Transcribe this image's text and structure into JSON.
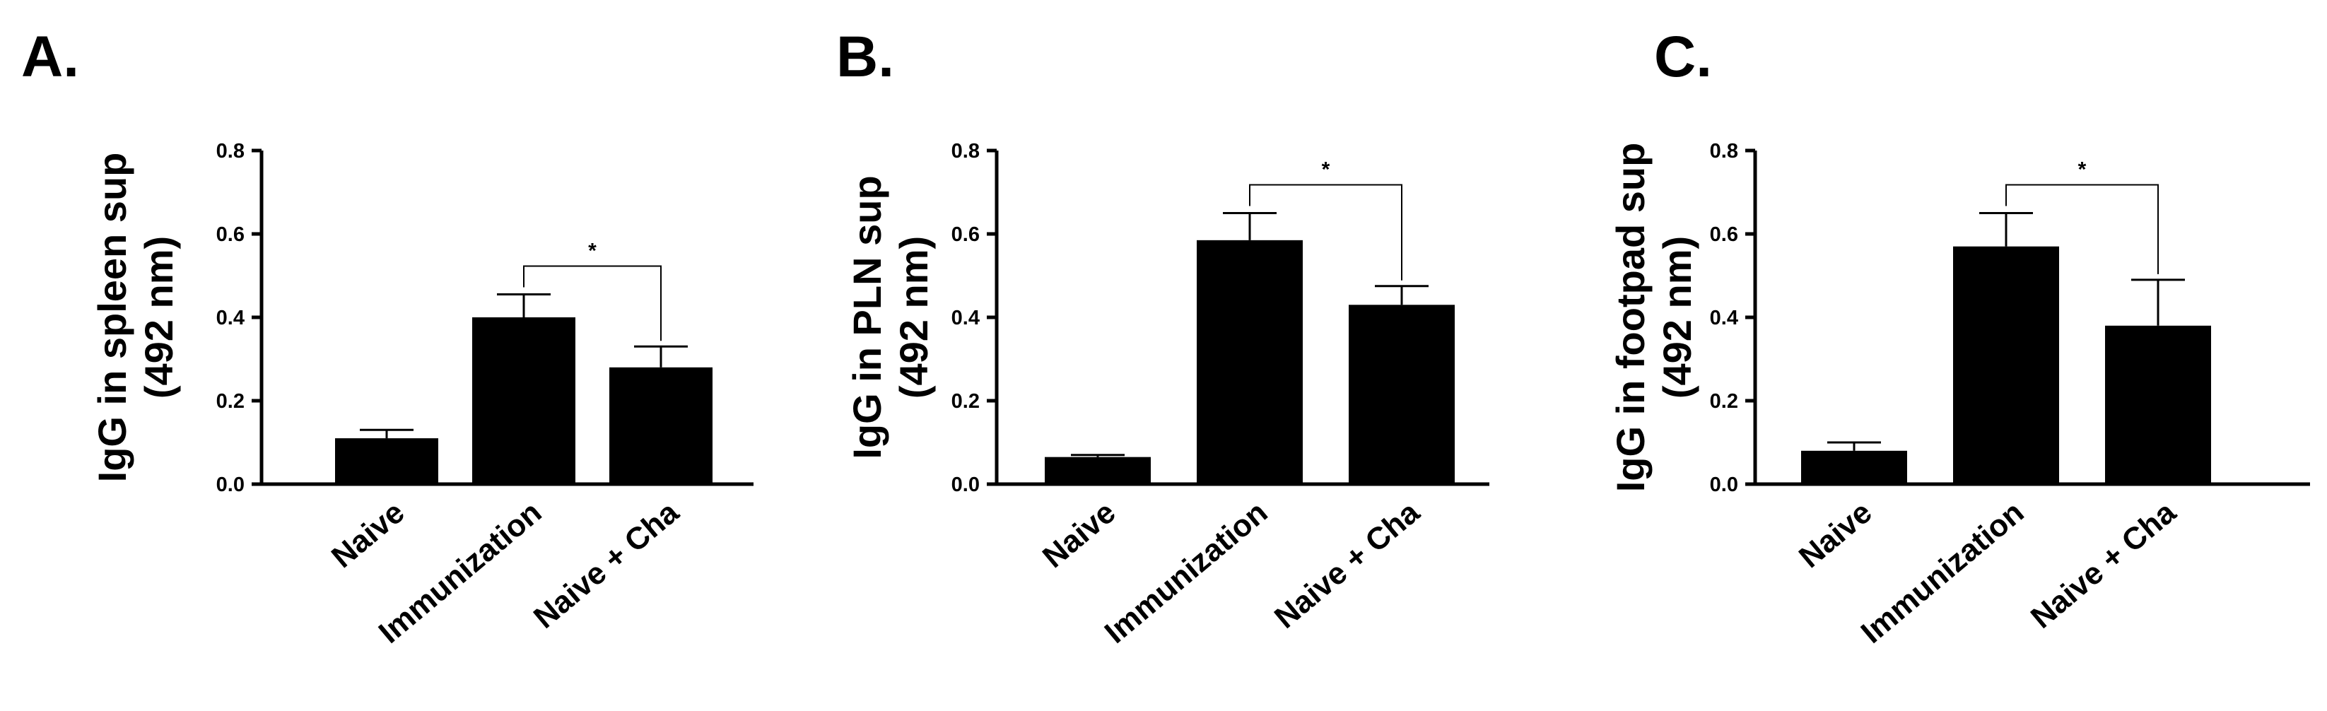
{
  "chart_data": [
    {
      "panel_label": "A.",
      "type": "bar",
      "categories": [
        "Naive",
        "Immunization",
        "Naive + Cha"
      ],
      "values": [
        0.11,
        0.4,
        0.28
      ],
      "errors": [
        0.02,
        0.055,
        0.05
      ],
      "ylabel_lines": [
        "IgG in spleen sup",
        "(492 nm)"
      ],
      "xlabel": "",
      "ylim": [
        0,
        0.8
      ],
      "yticks": [
        "0.0",
        "0.2",
        "0.4",
        "0.6",
        "0.8"
      ],
      "yticks_values": [
        0,
        0.2,
        0.4,
        0.6,
        0.8
      ],
      "significance": [
        {
          "from": 1,
          "to": 2,
          "label": "*"
        }
      ],
      "grid": false,
      "color": "#000000"
    },
    {
      "panel_label": "B.",
      "type": "bar",
      "categories": [
        "Naive",
        "Immunization",
        "Naive + Cha"
      ],
      "values": [
        0.065,
        0.585,
        0.43
      ],
      "errors": [
        0.005,
        0.065,
        0.045
      ],
      "ylabel_lines": [
        "IgG in PLN sup",
        "(492 nm)"
      ],
      "xlabel": "",
      "ylim": [
        0,
        0.8
      ],
      "yticks": [
        "0.0",
        "0.2",
        "0.4",
        "0.6",
        "0.8"
      ],
      "yticks_values": [
        0,
        0.2,
        0.4,
        0.6,
        0.8
      ],
      "significance": [
        {
          "from": 1,
          "to": 2,
          "label": "*"
        }
      ],
      "grid": false,
      "color": "#000000"
    },
    {
      "panel_label": "C.",
      "type": "bar",
      "categories": [
        "Naive",
        "Immunization",
        "Naive + Cha"
      ],
      "values": [
        0.08,
        0.57,
        0.38
      ],
      "errors": [
        0.02,
        0.08,
        0.11
      ],
      "ylabel_lines": [
        "IgG in footpad sup",
        "(492 nm)"
      ],
      "xlabel": "",
      "ylim": [
        0,
        0.8
      ],
      "yticks": [
        "0.0",
        "0.2",
        "0.4",
        "0.6",
        "0.8"
      ],
      "yticks_values": [
        0,
        0.2,
        0.4,
        0.6,
        0.8
      ],
      "significance": [
        {
          "from": 1,
          "to": 2,
          "label": "*"
        }
      ],
      "grid": false,
      "color": "#000000"
    }
  ]
}
